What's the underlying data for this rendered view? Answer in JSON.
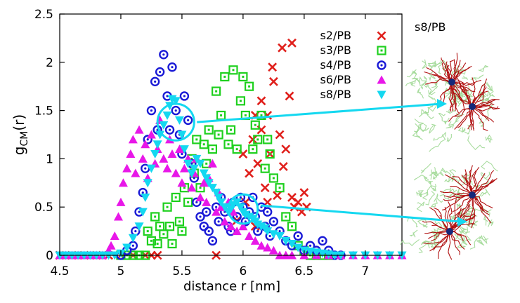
{
  "chart_data": {
    "type": "scatter",
    "title": "",
    "xlabel": "distance r [nm]",
    "ylabel_main": "g",
    "ylabel_sub": "CM",
    "ylabel_tail": "(r)",
    "xlim": [
      4.5,
      7.3
    ],
    "ylim": [
      0,
      2.5
    ],
    "x_ticks": [
      4.5,
      5,
      5.5,
      6,
      6.5,
      7
    ],
    "x_tick_labels": [
      "4.5",
      "5",
      "5.5",
      "6",
      "6.5",
      "7"
    ],
    "y_ticks": [
      0,
      0.5,
      1,
      1.5,
      2,
      2.5
    ],
    "y_tick_labels": [
      "0",
      "0.5",
      "1",
      "1.5",
      "2",
      "2.5"
    ],
    "legend_position": "top-right",
    "side_label": "s8/PB",
    "series": [
      {
        "name": "s2/PB",
        "marker": "x",
        "color": "#e0201c",
        "points": [
          [
            4.5,
            0
          ],
          [
            4.6,
            0
          ],
          [
            4.7,
            0
          ],
          [
            4.8,
            0
          ],
          [
            4.9,
            0
          ],
          [
            5.0,
            0
          ],
          [
            5.1,
            0
          ],
          [
            5.2,
            0
          ],
          [
            5.25,
            0
          ],
          [
            5.3,
            0
          ],
          [
            5.78,
            0
          ],
          [
            5.95,
            0.36
          ],
          [
            6.0,
            1.05
          ],
          [
            6.02,
            0.55
          ],
          [
            6.05,
            0.85
          ],
          [
            6.08,
            1.2
          ],
          [
            6.1,
            0.3
          ],
          [
            6.12,
            0.95
          ],
          [
            6.15,
            1.3
          ],
          [
            6.18,
            0.7
          ],
          [
            6.2,
            1.45
          ],
          [
            6.22,
            1.05
          ],
          [
            6.25,
            1.8
          ],
          [
            6.28,
            0.62
          ],
          [
            6.3,
            1.25
          ],
          [
            6.33,
            0.92
          ],
          [
            6.38,
            1.65
          ],
          [
            6.4,
            0.6
          ],
          [
            6.42,
            0.5
          ],
          [
            6.45,
            0.55
          ],
          [
            6.48,
            0.45
          ],
          [
            6.5,
            0.65
          ],
          [
            6.52,
            0.5
          ],
          [
            6.15,
            1.6
          ],
          [
            6.24,
            1.95
          ],
          [
            6.32,
            2.15
          ],
          [
            6.4,
            2.2
          ],
          [
            6.1,
            1.45
          ],
          [
            6.2,
            0.55
          ],
          [
            6.35,
            1.1
          ]
        ]
      },
      {
        "name": "s3/PB",
        "marker": "square",
        "color": "#1ed01e",
        "points": [
          [
            5.0,
            0
          ],
          [
            5.05,
            0
          ],
          [
            5.1,
            0
          ],
          [
            5.15,
            0
          ],
          [
            5.2,
            0
          ],
          [
            5.22,
            0.25
          ],
          [
            5.25,
            0.15
          ],
          [
            5.28,
            0.4
          ],
          [
            5.3,
            0.12
          ],
          [
            5.32,
            0.3
          ],
          [
            5.35,
            0.22
          ],
          [
            5.38,
            0.5
          ],
          [
            5.4,
            0.3
          ],
          [
            5.42,
            0.12
          ],
          [
            5.45,
            0.6
          ],
          [
            5.48,
            0.35
          ],
          [
            5.5,
            0.25
          ],
          [
            5.52,
            0.7
          ],
          [
            5.55,
            0.55
          ],
          [
            5.58,
            1.0
          ],
          [
            5.6,
            0.85
          ],
          [
            5.62,
            1.2
          ],
          [
            5.65,
            0.7
          ],
          [
            5.68,
            1.15
          ],
          [
            5.7,
            0.95
          ],
          [
            5.72,
            1.3
          ],
          [
            5.75,
            1.1
          ],
          [
            5.78,
            1.7
          ],
          [
            5.8,
            1.25
          ],
          [
            5.82,
            1.45
          ],
          [
            5.85,
            1.85
          ],
          [
            5.88,
            1.15
          ],
          [
            5.9,
            1.3
          ],
          [
            5.92,
            1.92
          ],
          [
            5.95,
            1.1
          ],
          [
            5.98,
            1.6
          ],
          [
            6.0,
            1.85
          ],
          [
            6.02,
            1.45
          ],
          [
            6.05,
            1.75
          ],
          [
            6.08,
            1.1
          ],
          [
            6.1,
            1.35
          ],
          [
            6.12,
            1.2
          ],
          [
            6.15,
            1.45
          ],
          [
            6.18,
            0.9
          ],
          [
            6.2,
            1.2
          ],
          [
            6.22,
            1.05
          ],
          [
            6.25,
            0.8
          ],
          [
            6.3,
            0.7
          ],
          [
            6.35,
            0.4
          ],
          [
            6.4,
            0.3
          ],
          [
            6.45,
            0.1
          ],
          [
            6.5,
            0.05
          ],
          [
            6.55,
            0
          ],
          [
            6.6,
            0
          ],
          [
            6.65,
            0
          ],
          [
            6.7,
            0
          ]
        ]
      },
      {
        "name": "s4/PB",
        "marker": "circle-dot",
        "color": "#1a1ad6",
        "points": [
          [
            5.0,
            0
          ],
          [
            5.05,
            0.05
          ],
          [
            5.1,
            0.1
          ],
          [
            5.12,
            0.25
          ],
          [
            5.15,
            0.45
          ],
          [
            5.18,
            0.65
          ],
          [
            5.2,
            0.9
          ],
          [
            5.22,
            1.2
          ],
          [
            5.25,
            1.5
          ],
          [
            5.28,
            1.8
          ],
          [
            5.3,
            1.3
          ],
          [
            5.32,
            1.9
          ],
          [
            5.35,
            2.08
          ],
          [
            5.38,
            1.65
          ],
          [
            5.4,
            1.3
          ],
          [
            5.42,
            1.95
          ],
          [
            5.45,
            1.5
          ],
          [
            5.48,
            1.25
          ],
          [
            5.5,
            1.05
          ],
          [
            5.52,
            1.65
          ],
          [
            5.55,
            1.4
          ],
          [
            5.58,
            0.95
          ],
          [
            5.6,
            0.8
          ],
          [
            5.62,
            0.55
          ],
          [
            5.65,
            0.4
          ],
          [
            5.68,
            0.3
          ],
          [
            5.7,
            0.45
          ],
          [
            5.72,
            0.25
          ],
          [
            5.75,
            0.15
          ],
          [
            5.78,
            0.5
          ],
          [
            5.8,
            0.35
          ],
          [
            5.82,
            0.6
          ],
          [
            5.85,
            0.45
          ],
          [
            5.88,
            0.3
          ],
          [
            5.9,
            0.25
          ],
          [
            5.92,
            0.55
          ],
          [
            5.95,
            0.4
          ],
          [
            5.98,
            0.6
          ],
          [
            6.0,
            0.5
          ],
          [
            6.02,
            0.35
          ],
          [
            6.05,
            0.45
          ],
          [
            6.08,
            0.6
          ],
          [
            6.1,
            0.4
          ],
          [
            6.12,
            0.25
          ],
          [
            6.15,
            0.5
          ],
          [
            6.18,
            0.3
          ],
          [
            6.2,
            0.45
          ],
          [
            6.22,
            0.2
          ],
          [
            6.25,
            0.35
          ],
          [
            6.3,
            0.25
          ],
          [
            6.35,
            0.15
          ],
          [
            6.4,
            0.1
          ],
          [
            6.45,
            0.2
          ],
          [
            6.5,
            0.05
          ],
          [
            6.55,
            0.1
          ],
          [
            6.6,
            0.05
          ],
          [
            6.65,
            0.15
          ],
          [
            6.7,
            0.05
          ],
          [
            6.75,
            0
          ],
          [
            6.8,
            0
          ]
        ]
      },
      {
        "name": "s6/PB",
        "marker": "triangle-up",
        "color": "#e817e8",
        "points": [
          [
            4.5,
            0
          ],
          [
            4.55,
            0
          ],
          [
            4.6,
            0
          ],
          [
            4.65,
            0
          ],
          [
            4.7,
            0
          ],
          [
            4.75,
            0
          ],
          [
            4.8,
            0
          ],
          [
            4.85,
            0
          ],
          [
            4.9,
            0.05
          ],
          [
            4.92,
            0.1
          ],
          [
            4.95,
            0.2
          ],
          [
            4.98,
            0.4
          ],
          [
            5.0,
            0.55
          ],
          [
            5.02,
            0.75
          ],
          [
            5.05,
            0.9
          ],
          [
            5.08,
            1.05
          ],
          [
            5.1,
            1.2
          ],
          [
            5.12,
            0.85
          ],
          [
            5.15,
            1.3
          ],
          [
            5.18,
            1.0
          ],
          [
            5.2,
            1.15
          ],
          [
            5.22,
            0.8
          ],
          [
            5.25,
            1.25
          ],
          [
            5.28,
            0.95
          ],
          [
            5.3,
            1.1
          ],
          [
            5.32,
            1.4
          ],
          [
            5.35,
            1.0
          ],
          [
            5.38,
            0.9
          ],
          [
            5.4,
            1.2
          ],
          [
            5.42,
            1.05
          ],
          [
            5.45,
            0.85
          ],
          [
            5.48,
            1.1
          ],
          [
            5.5,
            0.75
          ],
          [
            5.52,
            0.9
          ],
          [
            5.55,
            1.0
          ],
          [
            5.58,
            0.7
          ],
          [
            5.6,
            0.85
          ],
          [
            5.62,
            1.0
          ],
          [
            5.65,
            0.6
          ],
          [
            5.68,
            0.75
          ],
          [
            5.7,
            0.55
          ],
          [
            5.72,
            0.8
          ],
          [
            5.75,
            0.95
          ],
          [
            5.78,
            0.45
          ],
          [
            5.8,
            0.65
          ],
          [
            5.82,
            0.5
          ],
          [
            5.85,
            0.35
          ],
          [
            5.88,
            0.55
          ],
          [
            5.9,
            0.3
          ],
          [
            5.92,
            0.45
          ],
          [
            5.95,
            0.25
          ],
          [
            6.0,
            0.3
          ],
          [
            6.05,
            0.2
          ],
          [
            6.1,
            0.15
          ],
          [
            6.15,
            0.1
          ],
          [
            6.2,
            0.08
          ],
          [
            6.25,
            0.05
          ],
          [
            6.3,
            0
          ],
          [
            6.35,
            0
          ],
          [
            6.4,
            0
          ],
          [
            6.5,
            0
          ],
          [
            6.6,
            0
          ],
          [
            6.7,
            0
          ],
          [
            6.8,
            0
          ],
          [
            6.9,
            0
          ],
          [
            7.0,
            0
          ],
          [
            7.1,
            0
          ],
          [
            7.2,
            0
          ],
          [
            7.3,
            0
          ]
        ]
      },
      {
        "name": "s8/PB",
        "marker": "triangle-down",
        "color": "#14d8f0",
        "points": [
          [
            4.5,
            0
          ],
          [
            4.55,
            0
          ],
          [
            4.6,
            0
          ],
          [
            4.65,
            0
          ],
          [
            4.7,
            0
          ],
          [
            4.75,
            0
          ],
          [
            4.8,
            0
          ],
          [
            4.85,
            0
          ],
          [
            4.9,
            0
          ],
          [
            4.95,
            0
          ],
          [
            5.0,
            0.02
          ],
          [
            5.05,
            0.08
          ],
          [
            5.1,
            0.18
          ],
          [
            5.15,
            0.3
          ],
          [
            5.18,
            0.45
          ],
          [
            5.2,
            0.6
          ],
          [
            5.22,
            0.75
          ],
          [
            5.25,
            0.9
          ],
          [
            5.28,
            1.05
          ],
          [
            5.3,
            1.15
          ],
          [
            5.32,
            1.25
          ],
          [
            5.35,
            1.35
          ],
          [
            5.38,
            1.45
          ],
          [
            5.4,
            1.55
          ],
          [
            5.42,
            1.62
          ],
          [
            5.45,
            1.6
          ],
          [
            5.48,
            1.4
          ],
          [
            5.5,
            1.25
          ],
          [
            5.52,
            1.1
          ],
          [
            5.55,
            0.95
          ],
          [
            5.58,
            0.85
          ],
          [
            5.6,
            0.9
          ],
          [
            5.62,
            1.0
          ],
          [
            5.65,
            0.95
          ],
          [
            5.68,
            0.85
          ],
          [
            5.7,
            0.8
          ],
          [
            5.72,
            0.75
          ],
          [
            5.75,
            0.7
          ],
          [
            5.78,
            0.65
          ],
          [
            5.8,
            0.6
          ],
          [
            5.82,
            0.55
          ],
          [
            5.85,
            0.5
          ],
          [
            5.88,
            0.45
          ],
          [
            5.9,
            0.48
          ],
          [
            5.92,
            0.52
          ],
          [
            5.95,
            0.55
          ],
          [
            5.98,
            0.5
          ],
          [
            6.0,
            0.45
          ],
          [
            6.02,
            0.42
          ],
          [
            6.05,
            0.4
          ],
          [
            6.08,
            0.38
          ],
          [
            6.1,
            0.35
          ],
          [
            6.12,
            0.32
          ],
          [
            6.15,
            0.3
          ],
          [
            6.18,
            0.28
          ],
          [
            6.2,
            0.25
          ],
          [
            6.25,
            0.22
          ],
          [
            6.3,
            0.2
          ],
          [
            6.35,
            0.15
          ],
          [
            6.4,
            0.12
          ],
          [
            6.45,
            0.08
          ],
          [
            6.5,
            0.05
          ],
          [
            6.55,
            0.04
          ],
          [
            6.6,
            0.03
          ],
          [
            6.65,
            0.02
          ],
          [
            6.7,
            0.01
          ],
          [
            6.75,
            0
          ],
          [
            6.8,
            0
          ],
          [
            6.9,
            0
          ],
          [
            7.0,
            0
          ],
          [
            7.1,
            0
          ],
          [
            7.2,
            0
          ],
          [
            7.3,
            0
          ]
        ]
      }
    ],
    "highlights": [
      {
        "center": [
          5.45,
          1.38
        ],
        "radius_x": 0.15
      },
      {
        "center": [
          6.0,
          0.48
        ],
        "radius_x": 0.12
      }
    ]
  }
}
